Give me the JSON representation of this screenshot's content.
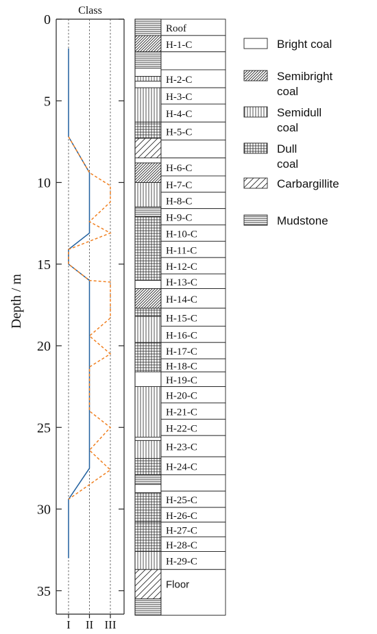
{
  "plot": {
    "ylabel": "Depth / m",
    "xlabel_top": "Class",
    "y_ticks": [
      0,
      5,
      10,
      15,
      20,
      25,
      30,
      35
    ],
    "x_ticks": [
      "I",
      "II",
      "III"
    ],
    "y_range": [
      0,
      36.5
    ]
  },
  "lithology": {
    "layers": [
      {
        "from": 0.0,
        "to": 1.0,
        "type": "mudstone",
        "label": "Roof"
      },
      {
        "from": 1.0,
        "to": 2.0,
        "type": "semibright",
        "label": "H-1-C"
      },
      {
        "from": 2.0,
        "to": 3.0,
        "type": "mudstone",
        "label": ""
      },
      {
        "from": 3.0,
        "to": 3.5,
        "type": "bright",
        "label": ""
      },
      {
        "from": 3.5,
        "to": 3.8,
        "type": "semidull",
        "label": "H-2-C"
      },
      {
        "from": 3.8,
        "to": 4.2,
        "type": "bright",
        "label": ""
      },
      {
        "from": 4.2,
        "to": 6.3,
        "type": "semidull",
        "label": "H-3-C"
      },
      {
        "from": 6.3,
        "to": 7.3,
        "type": "dull",
        "label": "H-5-C"
      },
      {
        "from": 7.3,
        "to": 8.5,
        "type": "carbargillite",
        "label": ""
      },
      {
        "from": 8.5,
        "to": 8.8,
        "type": "bright",
        "label": ""
      },
      {
        "from": 8.8,
        "to": 10.0,
        "type": "semibright",
        "label": "H-6-C"
      },
      {
        "from": 10.0,
        "to": 11.5,
        "type": "semidull",
        "label": "H-7-C"
      },
      {
        "from": 11.5,
        "to": 12.1,
        "type": "mudstone",
        "label": ""
      },
      {
        "from": 12.1,
        "to": 16.0,
        "type": "dull",
        "label": "H-10-C"
      },
      {
        "from": 16.0,
        "to": 16.5,
        "type": "bright",
        "label": ""
      },
      {
        "from": 16.5,
        "to": 17.7,
        "type": "semibright",
        "label": "H-14-C"
      },
      {
        "from": 17.7,
        "to": 18.2,
        "type": "dull",
        "label": ""
      },
      {
        "from": 18.2,
        "to": 19.8,
        "type": "semidull",
        "label": "H-15-C"
      },
      {
        "from": 19.8,
        "to": 21.6,
        "type": "dull",
        "label": "H-17-C"
      },
      {
        "from": 21.6,
        "to": 22.5,
        "type": "bright",
        "label": "H-19-C"
      },
      {
        "from": 22.5,
        "to": 25.6,
        "type": "semidull",
        "label": "H-20-C"
      },
      {
        "from": 25.6,
        "to": 25.8,
        "type": "bright",
        "label": ""
      },
      {
        "from": 25.8,
        "to": 26.9,
        "type": "semidull",
        "label": "H-23-C"
      },
      {
        "from": 26.9,
        "to": 27.9,
        "type": "dull",
        "label": "H-24-C"
      },
      {
        "from": 27.9,
        "to": 28.5,
        "type": "mudstone",
        "label": ""
      },
      {
        "from": 28.5,
        "to": 29.0,
        "type": "bright",
        "label": ""
      },
      {
        "from": 29.0,
        "to": 30.8,
        "type": "dull",
        "label": "H-25-C"
      },
      {
        "from": 30.8,
        "to": 32.6,
        "type": "dull",
        "label": "H-27-C"
      },
      {
        "from": 32.6,
        "to": 33.7,
        "type": "semidull",
        "label": "H-29-C"
      },
      {
        "from": 33.7,
        "to": 35.5,
        "type": "carbargillite",
        "label": "Floor"
      },
      {
        "from": 35.5,
        "to": 36.5,
        "type": "mudstone",
        "label": ""
      }
    ],
    "samples": [
      {
        "label": "Roof",
        "from": 0.0,
        "to": 1.0
      },
      {
        "label": "H-1-C",
        "from": 1.0,
        "to": 2.0
      },
      {
        "label": "",
        "from": 2.0,
        "to": 3.1
      },
      {
        "label": "H-2-C",
        "from": 3.1,
        "to": 4.2
      },
      {
        "label": "H-3-C",
        "from": 4.2,
        "to": 5.2
      },
      {
        "label": "H-4-C",
        "from": 5.2,
        "to": 6.3
      },
      {
        "label": "H-5-C",
        "from": 6.3,
        "to": 7.4
      },
      {
        "label": "",
        "from": 7.4,
        "to": 8.5
      },
      {
        "label": "H-6-C",
        "from": 8.5,
        "to": 9.6
      },
      {
        "label": "H-7-C",
        "from": 9.6,
        "to": 10.6
      },
      {
        "label": "H-8-C",
        "from": 10.6,
        "to": 11.6
      },
      {
        "label": "H-9-C",
        "from": 11.6,
        "to": 12.6
      },
      {
        "label": "H-10-C",
        "from": 12.6,
        "to": 13.6
      },
      {
        "label": "H-11-C",
        "from": 13.6,
        "to": 14.6
      },
      {
        "label": "H-12-C",
        "from": 14.6,
        "to": 15.6
      },
      {
        "label": "H-13-C",
        "from": 15.6,
        "to": 16.5
      },
      {
        "label": "H-14-C",
        "from": 16.5,
        "to": 17.7
      },
      {
        "label": "H-15-C",
        "from": 17.7,
        "to": 18.8
      },
      {
        "label": "H-16-C",
        "from": 18.8,
        "to": 19.8
      },
      {
        "label": "H-17-C",
        "from": 19.8,
        "to": 20.8
      },
      {
        "label": "H-18-C",
        "from": 20.8,
        "to": 21.6
      },
      {
        "label": "H-19-C",
        "from": 21.6,
        "to": 22.5
      },
      {
        "label": "H-20-C",
        "from": 22.5,
        "to": 23.5
      },
      {
        "label": "H-21-C",
        "from": 23.5,
        "to": 24.5
      },
      {
        "label": "H-22-C",
        "from": 24.5,
        "to": 25.5
      },
      {
        "label": "H-23-C",
        "from": 25.5,
        "to": 26.8
      },
      {
        "label": "H-24-C",
        "from": 26.8,
        "to": 27.9
      },
      {
        "label": "",
        "from": 27.9,
        "to": 28.9
      },
      {
        "label": "H-25-C",
        "from": 28.9,
        "to": 29.9
      },
      {
        "label": "H-26-C",
        "from": 29.9,
        "to": 30.8
      },
      {
        "label": "H-27-C",
        "from": 30.8,
        "to": 31.7
      },
      {
        "label": "H-28-C",
        "from": 31.7,
        "to": 32.6
      },
      {
        "label": "H-29-C",
        "from": 32.6,
        "to": 33.7
      },
      {
        "label": "Floor",
        "from": 33.7,
        "to": 36.5
      }
    ]
  },
  "legend": [
    {
      "type": "bright",
      "lines": [
        "Bright coal"
      ]
    },
    {
      "type": "semibright",
      "lines": [
        "Semibright",
        "coal"
      ]
    },
    {
      "type": "semidull",
      "lines": [
        "Semidull",
        "coal"
      ]
    },
    {
      "type": "dull",
      "lines": [
        "Dull",
        "coal"
      ]
    },
    {
      "type": "carbargillite",
      "lines": [
        "Carbargillite"
      ]
    },
    {
      "type": "mudstone",
      "lines": [
        "Mudstone"
      ]
    }
  ],
  "chart_data": {
    "type": "line",
    "series": [
      {
        "color": "#1f5f9e",
        "style": "solid",
        "points": [
          [
            1,
            1.8
          ],
          [
            1,
            7.2
          ],
          [
            2,
            9.4
          ],
          [
            2,
            13.1
          ],
          [
            1,
            14.1
          ],
          [
            1,
            15.0
          ],
          [
            2,
            16.0
          ],
          [
            2,
            27.5
          ],
          [
            1,
            29.4
          ],
          [
            1,
            33.0
          ]
        ]
      },
      {
        "color": "#f07f1f",
        "style": "dashed",
        "points": [
          [
            1,
            7.2
          ],
          [
            2,
            9.4
          ],
          [
            3,
            10.2
          ],
          [
            3,
            11.2
          ],
          [
            2,
            12.4
          ],
          [
            3,
            13.1
          ],
          [
            1,
            14.1
          ],
          [
            1,
            15.0
          ],
          [
            2,
            16.0
          ],
          [
            3,
            16.1
          ],
          [
            3,
            18.3
          ],
          [
            2,
            19.4
          ],
          [
            3,
            20.5
          ],
          [
            2,
            21.3
          ],
          [
            2,
            24.0
          ],
          [
            3,
            25.0
          ],
          [
            2,
            26.4
          ],
          [
            3,
            27.6
          ],
          [
            1,
            29.4
          ]
        ]
      }
    ],
    "xlim": [
      0.9,
      3.6
    ],
    "ylim": [
      0,
      36.5
    ]
  },
  "colors": {
    "blue": "#1f5f9e",
    "orange": "#f07f1f",
    "ink": "#222222"
  }
}
